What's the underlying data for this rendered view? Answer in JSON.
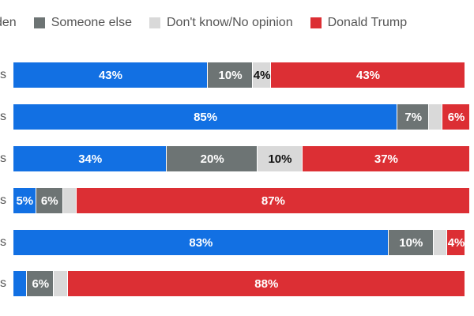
{
  "chart_data": {
    "type": "bar",
    "orientation": "horizontal",
    "stacked": true,
    "title": "",
    "xlabel": "",
    "ylabel": "",
    "xlim": [
      0,
      100
    ],
    "grid": false,
    "legend_position": "top",
    "categories": [
      "s",
      "s",
      "s",
      "s",
      "s",
      "s"
    ],
    "series": [
      {
        "name": "den",
        "color": "#1270e3",
        "values": [
          43,
          85,
          34,
          5,
          83,
          3
        ],
        "labels": [
          "43%",
          "85%",
          "34%",
          "5%",
          "83%",
          ""
        ],
        "label_color": "#ffffff"
      },
      {
        "name": "Someone else",
        "color": "#6d7474",
        "values": [
          10,
          7,
          20,
          6,
          10,
          6
        ],
        "labels": [
          "10%",
          "7%",
          "20%",
          "6%",
          "10%",
          "6%"
        ],
        "label_color": "#ffffff"
      },
      {
        "name": "Don't know/No opinion",
        "color": "#d9d9d9",
        "values": [
          4,
          3,
          10,
          3,
          3,
          3
        ],
        "labels": [
          "4%",
          "",
          "10%",
          "",
          "",
          ""
        ],
        "label_color": "#111111"
      },
      {
        "name": "Donald Trump",
        "color": "#dc2f34",
        "values": [
          43,
          6,
          37,
          87,
          4,
          88
        ],
        "labels": [
          "43%",
          "6%",
          "37%",
          "87%",
          "4%",
          "88%"
        ],
        "label_color": "#ffffff"
      }
    ]
  }
}
